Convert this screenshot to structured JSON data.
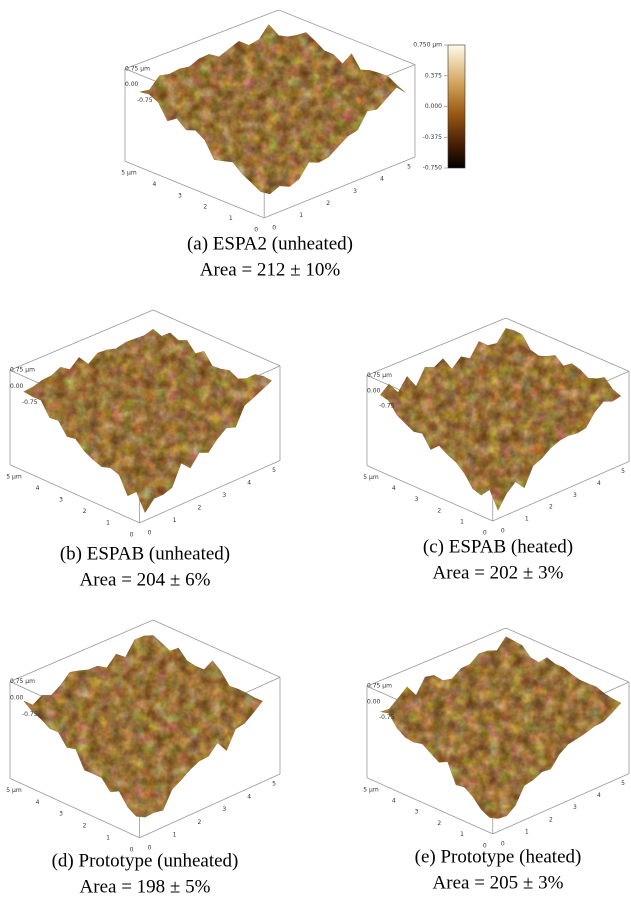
{
  "colorbar": {
    "labels": [
      "0.750 µm",
      "0.375",
      "0.000",
      "-0.375",
      "-0.750"
    ]
  },
  "panels": [
    {
      "caption": "(a) ESPA2 (unheated)",
      "area": "Area = 212 ± 10%",
      "z_labels": [
        "0.75 µm",
        "0.00",
        "-0.75"
      ],
      "y_labels": [
        "5 µm",
        "4",
        "3",
        "2",
        "1",
        "0"
      ],
      "x_labels": [
        "0",
        "1",
        "2",
        "3",
        "4",
        "5"
      ]
    },
    {
      "caption": "(b) ESPAB (unheated)",
      "area": "Area = 204 ± 6%",
      "z_labels": [
        "0.75 µm",
        "0.00",
        "-0.75"
      ],
      "y_labels": [
        "5 µm",
        "4",
        "3",
        "2",
        "1",
        "0"
      ],
      "x_labels": [
        "0",
        "1",
        "2",
        "3",
        "4",
        "5"
      ]
    },
    {
      "caption": "(c) ESPAB (heated)",
      "area": "Area = 202 ± 3%",
      "z_labels": [
        "0.75 µm",
        "0.00",
        "-0.75"
      ],
      "y_labels": [
        "5 µm",
        "4",
        "3",
        "2",
        "1",
        "0"
      ],
      "x_labels": [
        "0",
        "1",
        "2",
        "3",
        "4",
        "5"
      ]
    },
    {
      "caption": "(d) Prototype (unheated)",
      "area": "Area = 198 ± 5%",
      "z_labels": [
        "0.75 µm",
        "0.00",
        "-0.75"
      ],
      "y_labels": [
        "5 µm",
        "4",
        "3",
        "2",
        "1",
        "0"
      ],
      "x_labels": [
        "0",
        "1",
        "2",
        "3",
        "4",
        "5"
      ]
    },
    {
      "caption": "(e) Prototype (heated)",
      "area": "Area = 205 ± 3%",
      "z_labels": [
        "0.75 µm",
        "0.00",
        "-0.75"
      ],
      "y_labels": [
        "5 µm",
        "4",
        "3",
        "2",
        "1",
        "0"
      ],
      "x_labels": [
        "0",
        "1",
        "2",
        "3",
        "4",
        "5"
      ]
    }
  ]
}
